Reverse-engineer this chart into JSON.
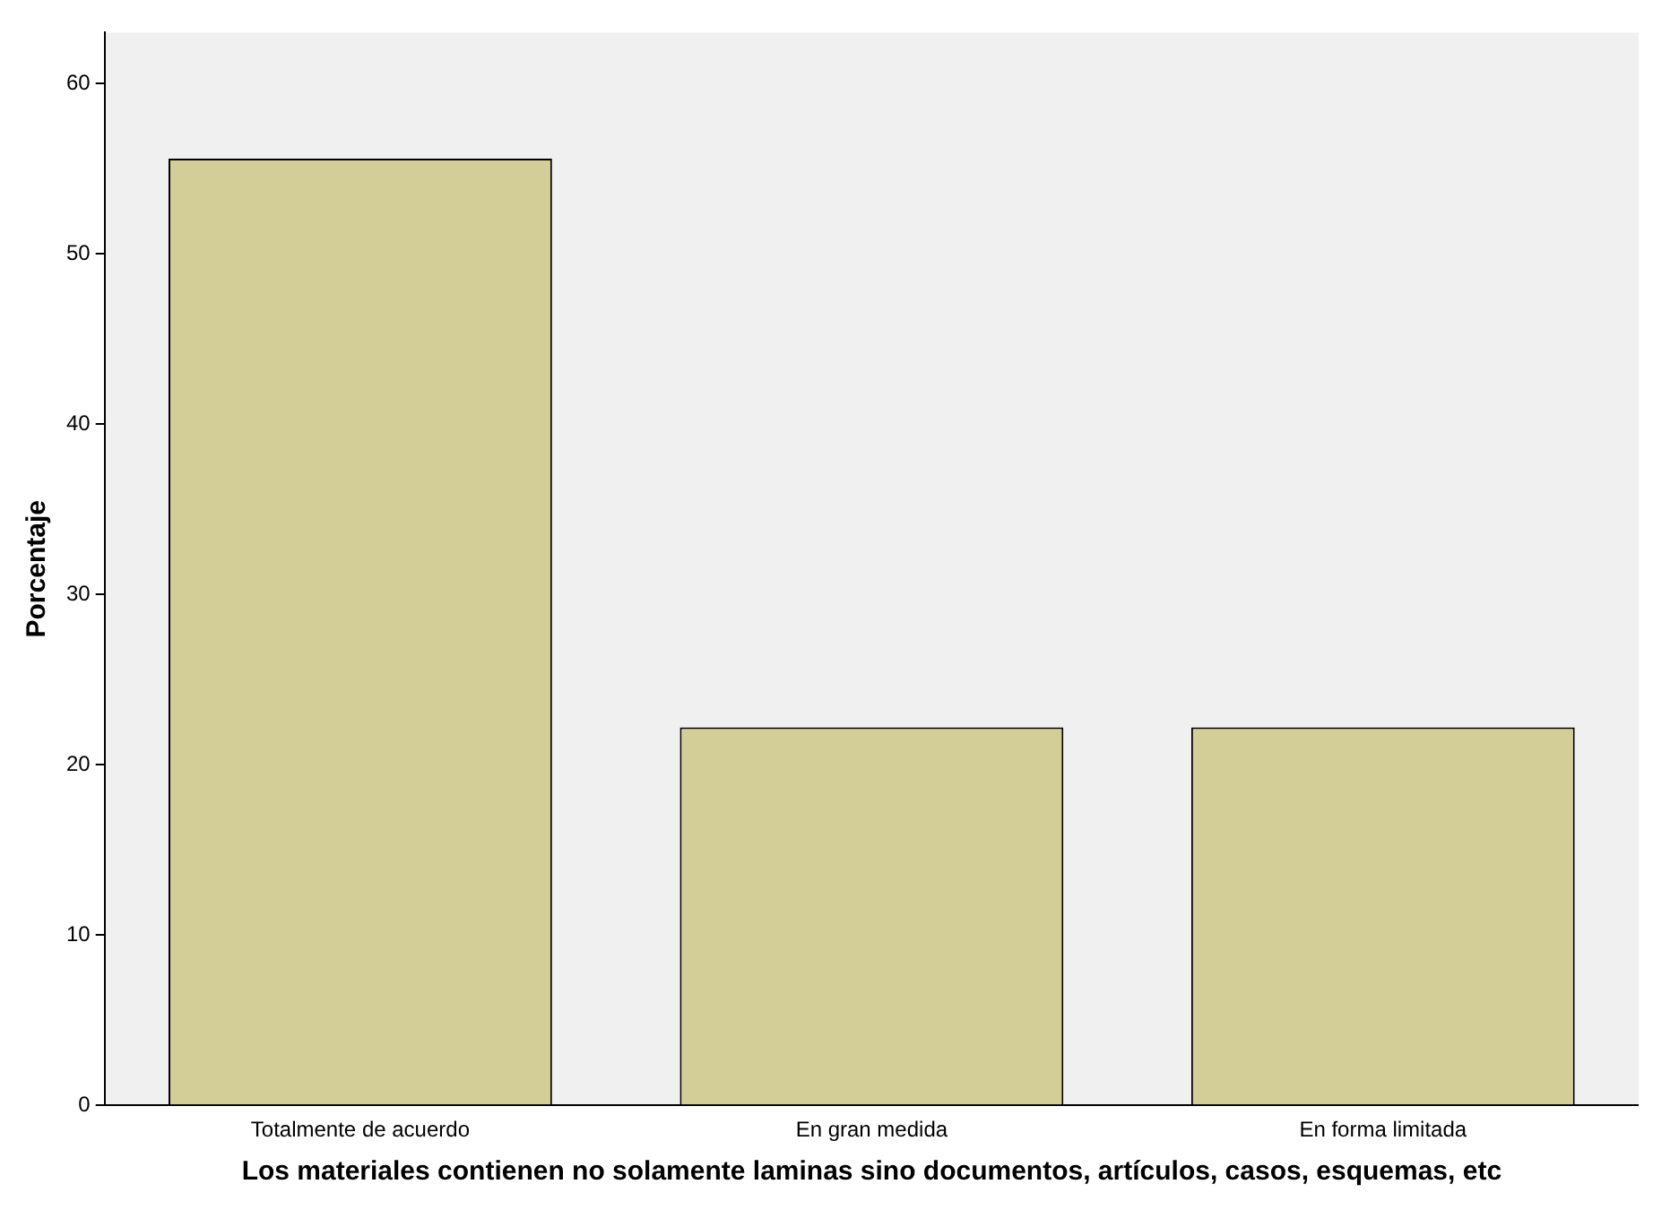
{
  "chart_data": {
    "type": "bar",
    "xlabel": "Los materiales contienen no solamente laminas sino documentos, artículos, casos, esquemas, etc",
    "ylabel": "Porcentaje",
    "categories": [
      "Totalmente de acuerdo",
      "En gran medida",
      "En forma limitada"
    ],
    "values": [
      55.6,
      22.2,
      22.2
    ],
    "color": "#d3ce97",
    "ylim": [
      0,
      63
    ],
    "yticks": [
      0,
      10,
      20,
      30,
      40,
      50,
      60
    ],
    "grid": false,
    "legend": false
  }
}
